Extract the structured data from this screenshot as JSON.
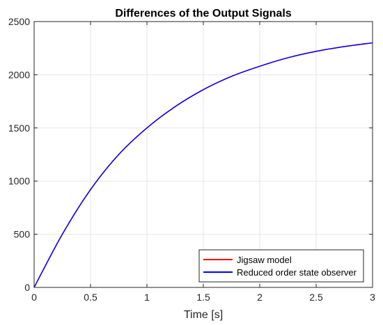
{
  "chart_data": {
    "type": "line",
    "title": "Differences of the Output Signals",
    "xlabel": "Time [s]",
    "ylabel": "",
    "xlim": [
      0,
      3
    ],
    "ylim": [
      0,
      2500
    ],
    "xticks": [
      0,
      0.5,
      1,
      1.5,
      2,
      2.5,
      3
    ],
    "xtick_labels": [
      "0",
      "0.5",
      "1",
      "1.5",
      "2",
      "2.5",
      "3"
    ],
    "yticks": [
      0,
      500,
      1000,
      1500,
      2000,
      2500
    ],
    "ytick_labels": [
      "0",
      "500",
      "1000",
      "1500",
      "2000",
      "2500"
    ],
    "grid": true,
    "legend_position": "bottom-right",
    "x": [
      0,
      0.25,
      0.5,
      0.75,
      1,
      1.25,
      1.5,
      1.75,
      2,
      2.25,
      2.5,
      2.75,
      3
    ],
    "series": [
      {
        "name": "Jigsaw model",
        "color": "#ff0000",
        "values": [
          0,
          500,
          920,
          1250,
          1500,
          1700,
          1860,
          1985,
          2080,
          2160,
          2220,
          2265,
          2300
        ]
      },
      {
        "name": "Reduced order state observer",
        "color": "#0000ff",
        "values": [
          0,
          500,
          920,
          1250,
          1500,
          1700,
          1860,
          1985,
          2080,
          2160,
          2220,
          2265,
          2300
        ]
      }
    ]
  }
}
